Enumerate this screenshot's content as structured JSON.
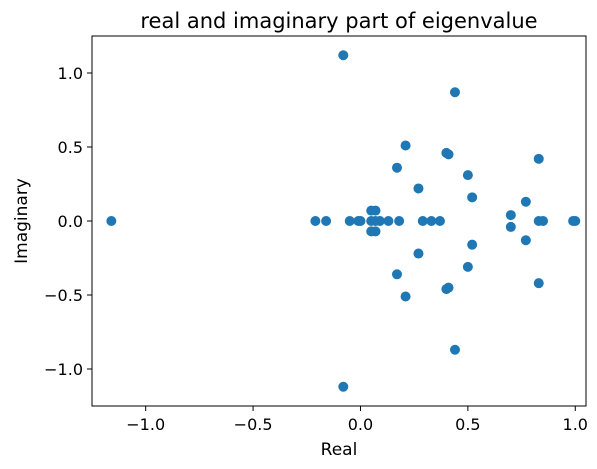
{
  "chart_data": {
    "type": "scatter",
    "title": "real and imaginary part of eigenvalue",
    "xlabel": "Real",
    "ylabel": "Imaginary",
    "xlim": [
      -1.25,
      1.05
    ],
    "ylim": [
      -1.25,
      1.25
    ],
    "xticks": [
      -1.0,
      -0.5,
      0.0,
      0.5,
      1.0
    ],
    "xtick_labels": [
      "−1.0",
      "−0.5",
      "0.0",
      "0.5",
      "1.0"
    ],
    "yticks": [
      -1.0,
      -0.5,
      0.0,
      0.5,
      1.0
    ],
    "ytick_labels": [
      "−1.0",
      "−0.5",
      "0.0",
      "0.5",
      "1.0"
    ],
    "grid": false,
    "marker_color": "#1f77b4",
    "series": [
      {
        "points": [
          [
            -1.16,
            0.0
          ],
          [
            -0.21,
            0.0
          ],
          [
            -0.16,
            0.0
          ],
          [
            -0.05,
            0.0
          ],
          [
            -0.01,
            0.0
          ],
          [
            0.0,
            0.0
          ],
          [
            0.05,
            0.0
          ],
          [
            0.07,
            0.0
          ],
          [
            0.09,
            0.0
          ],
          [
            0.13,
            0.0
          ],
          [
            0.18,
            0.0
          ],
          [
            0.29,
            0.0
          ],
          [
            0.33,
            0.0
          ],
          [
            0.37,
            0.0
          ],
          [
            0.83,
            0.0
          ],
          [
            0.85,
            0.0
          ],
          [
            0.99,
            0.0
          ],
          [
            1.0,
            0.0
          ],
          [
            0.05,
            0.07
          ],
          [
            0.05,
            -0.07
          ],
          [
            0.07,
            0.07
          ],
          [
            0.07,
            -0.07
          ],
          [
            -0.08,
            1.12
          ],
          [
            -0.08,
            -1.12
          ],
          [
            0.44,
            0.87
          ],
          [
            0.44,
            -0.87
          ],
          [
            0.21,
            0.51
          ],
          [
            0.21,
            -0.51
          ],
          [
            0.41,
            0.45
          ],
          [
            0.41,
            -0.45
          ],
          [
            0.4,
            0.46
          ],
          [
            0.4,
            -0.46
          ],
          [
            0.17,
            0.36
          ],
          [
            0.17,
            -0.36
          ],
          [
            0.5,
            0.31
          ],
          [
            0.5,
            -0.31
          ],
          [
            0.27,
            0.22
          ],
          [
            0.27,
            -0.22
          ],
          [
            0.52,
            0.16
          ],
          [
            0.52,
            -0.16
          ],
          [
            0.83,
            0.42
          ],
          [
            0.83,
            -0.42
          ],
          [
            0.77,
            0.13
          ],
          [
            0.77,
            -0.13
          ],
          [
            0.7,
            0.04
          ],
          [
            0.7,
            -0.04
          ]
        ]
      }
    ]
  }
}
